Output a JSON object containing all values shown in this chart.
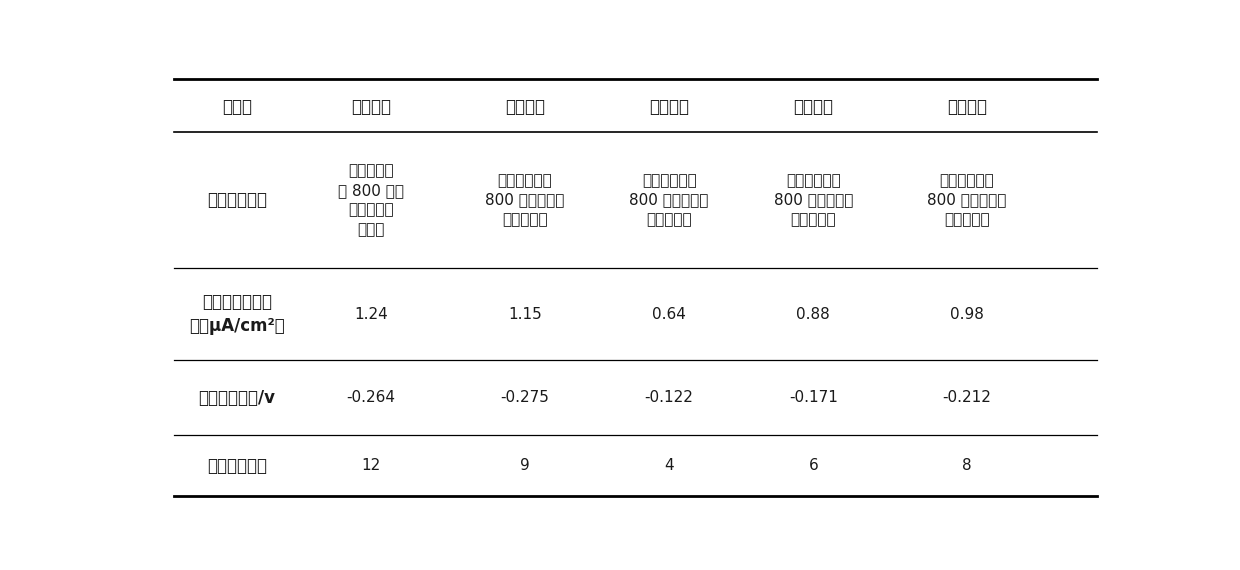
{
  "headers": [
    "实施例",
    "实施例一",
    "实施例二",
    "实施例三",
    "实施例四",
    "实施例五"
  ],
  "row_label_0": "涂层微观形貌",
  "row_label_1a": "平均腔蚀电流密",
  "row_label_1b": "度（μA/cm²）",
  "row_label_2": "平均腔蚀电位/v",
  "row_label_3": "被腔蚀电极数",
  "col1_morph_line1": "结构致密放",
  "col1_morph_line2": "大 800 倍观",
  "col1_morph_line3": "测没有孔洞",
  "col1_morph_line4": "及裂纹",
  "col25_morph_line1": "结构致密放大",
  "col25_morph_line2": "800 倍观测没有",
  "col25_morph_line3": "孔洞及裂纹",
  "current_density": [
    "1.24",
    "1.15",
    "0.64",
    "0.88",
    "0.98"
  ],
  "corrosion_potential": [
    "-0.264",
    "-0.275",
    "-0.122",
    "-0.171",
    "-0.212"
  ],
  "electrode_count": [
    "12",
    "9",
    "4",
    "6",
    "8"
  ],
  "background_color": "#ffffff",
  "text_color": "#1a1a1a",
  "line_color": "#000000",
  "figure_width": 12.4,
  "figure_height": 5.7,
  "dpi": 100
}
